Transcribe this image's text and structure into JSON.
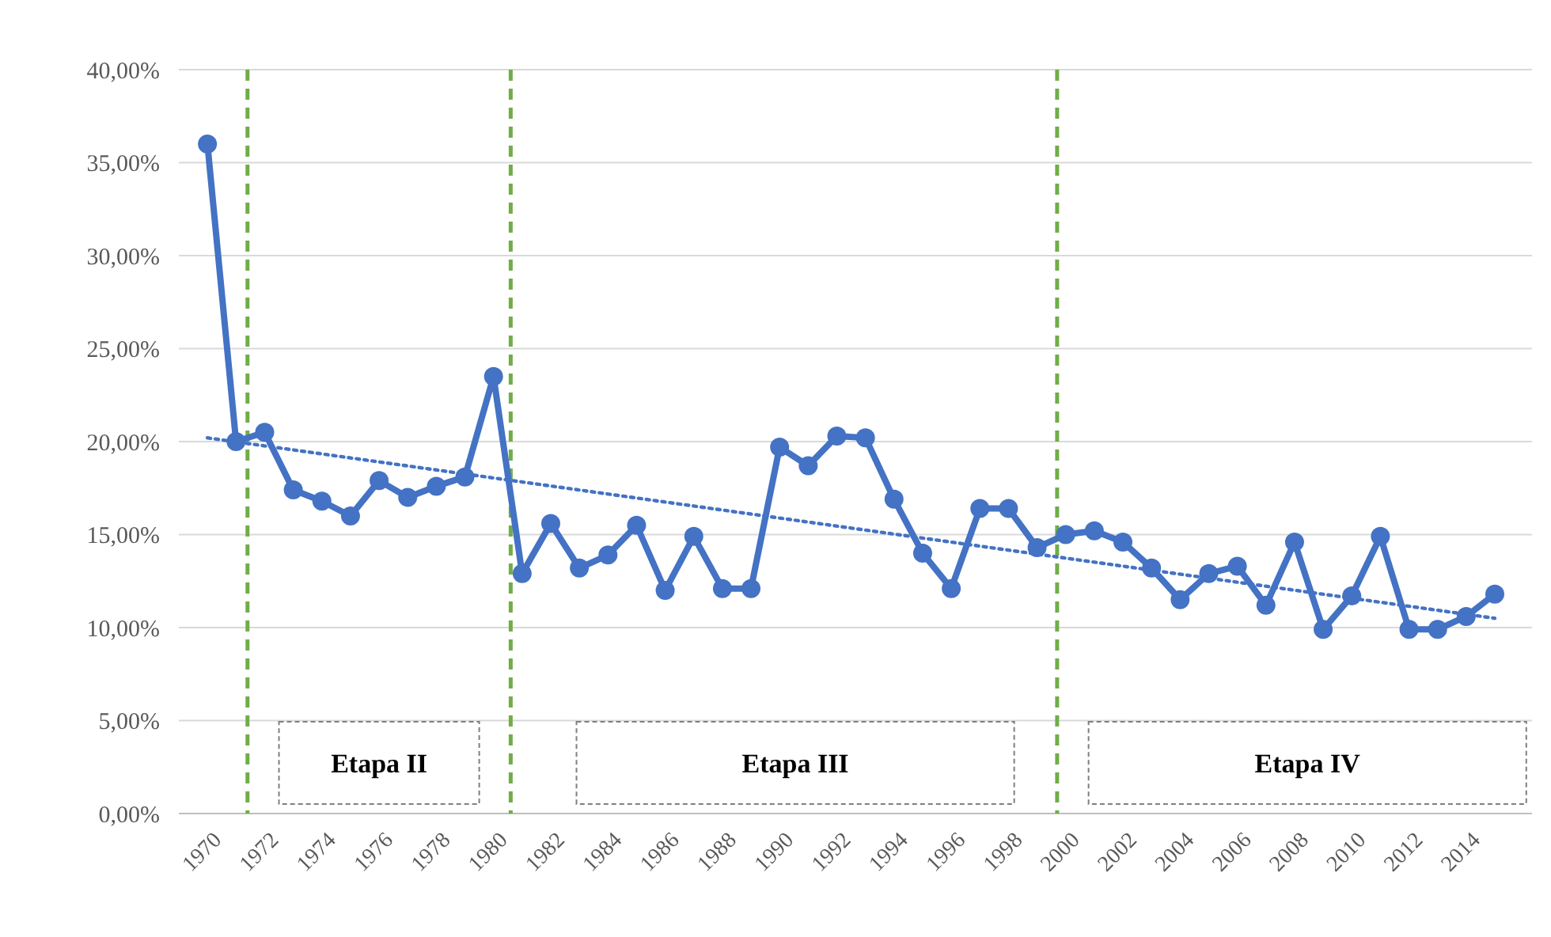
{
  "chart_data": {
    "type": "line",
    "x": [
      1970,
      1971,
      1972,
      1973,
      1974,
      1975,
      1976,
      1977,
      1978,
      1979,
      1980,
      1981,
      1982,
      1983,
      1984,
      1985,
      1986,
      1987,
      1988,
      1989,
      1990,
      1991,
      1992,
      1993,
      1994,
      1995,
      1996,
      1997,
      1998,
      1999,
      2000,
      2001,
      2002,
      2003,
      2004,
      2005,
      2006,
      2007,
      2008,
      2009,
      2010,
      2011,
      2012,
      2013,
      2014,
      2015
    ],
    "series": [
      {
        "color": "#4472c4",
        "values": [
          36.0,
          20.0,
          20.5,
          17.4,
          16.8,
          16.0,
          17.9,
          17.0,
          17.6,
          18.1,
          23.5,
          12.9,
          15.6,
          13.2,
          13.9,
          15.5,
          12.0,
          14.9,
          12.1,
          12.1,
          19.7,
          18.7,
          20.3,
          20.2,
          16.9,
          14.0,
          12.1,
          16.4,
          16.4,
          14.3,
          15.0,
          15.2,
          14.6,
          13.2,
          11.5,
          12.9,
          13.3,
          11.2,
          14.6,
          9.9,
          11.7,
          14.9,
          9.9,
          9.9,
          10.6,
          11.8
        ]
      },
      {
        "type": "line",
        "color": "#4472c4",
        "x": [
          1970,
          2015
        ],
        "values": [
          20.2,
          10.5
        ],
        "marker": "none",
        "line_style": "dotted"
      }
    ],
    "marker": "circle",
    "line_style": "solid",
    "xlim": [
      1969,
      2016.3
    ],
    "xticks": [
      1970,
      1972,
      1974,
      1976,
      1978,
      1980,
      1982,
      1984,
      1986,
      1988,
      1990,
      1992,
      1994,
      1996,
      1998,
      2000,
      2002,
      2004,
      2006,
      2008,
      2010,
      2012,
      2014
    ],
    "ylim": [
      0,
      40
    ],
    "yticks": [
      {
        "value": 0,
        "label": "0,00%"
      },
      {
        "value": 5,
        "label": "5,00%"
      },
      {
        "value": 10,
        "label": "10,00%"
      },
      {
        "value": 15,
        "label": "15,00%"
      },
      {
        "value": 20,
        "label": "20,00%"
      },
      {
        "value": 25,
        "label": "25,00%"
      },
      {
        "value": 30,
        "label": "30,00%"
      },
      {
        "value": 35,
        "label": "35,00%"
      },
      {
        "value": 40,
        "label": "40,00%"
      }
    ],
    "grid": "y",
    "ref_lines": [
      {
        "axis": "x",
        "value": 1971.4,
        "color": "#70ad47",
        "line_style": "dashed"
      },
      {
        "axis": "x",
        "value": 1980.6,
        "color": "#70ad47",
        "line_style": "dashed"
      },
      {
        "axis": "x",
        "value": 1999.7,
        "color": "#70ad47",
        "line_style": "dashed"
      }
    ],
    "bands": [
      {
        "axis": "x",
        "from": 1972.5,
        "to": 1979.5,
        "label": "Etapa II"
      },
      {
        "axis": "x",
        "from": 1982.9,
        "to": 1998.2,
        "label": "Etapa III"
      },
      {
        "axis": "x",
        "from": 2000.8,
        "to": 2016.1,
        "label": "Etapa IV"
      }
    ]
  }
}
